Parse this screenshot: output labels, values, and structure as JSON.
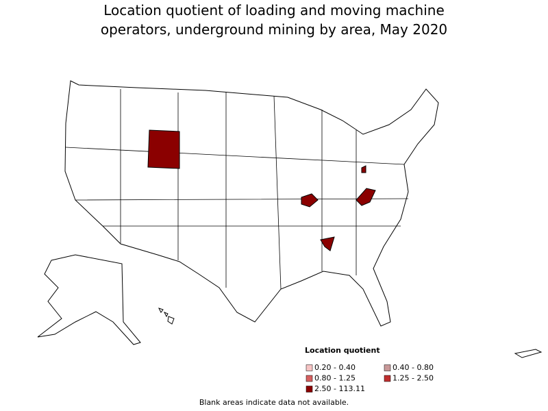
{
  "title": [
    "Location quotient of loading and moving machine",
    "operators, underground mining by area, May 2020"
  ],
  "legend": {
    "title": "Location quotient",
    "items": [
      {
        "label": "0.20 - 0.40",
        "color": "#f6c4c4"
      },
      {
        "label": "0.40 - 0.80",
        "color": "#c89898"
      },
      {
        "label": "0.80 - 1.25",
        "color": "#d66060"
      },
      {
        "label": "1.25 - 2.50",
        "color": "#bf2f2f"
      },
      {
        "label": "2.50 - 113.11",
        "color": "#8b0000"
      }
    ]
  },
  "note": "Blank areas indicate data not available."
}
